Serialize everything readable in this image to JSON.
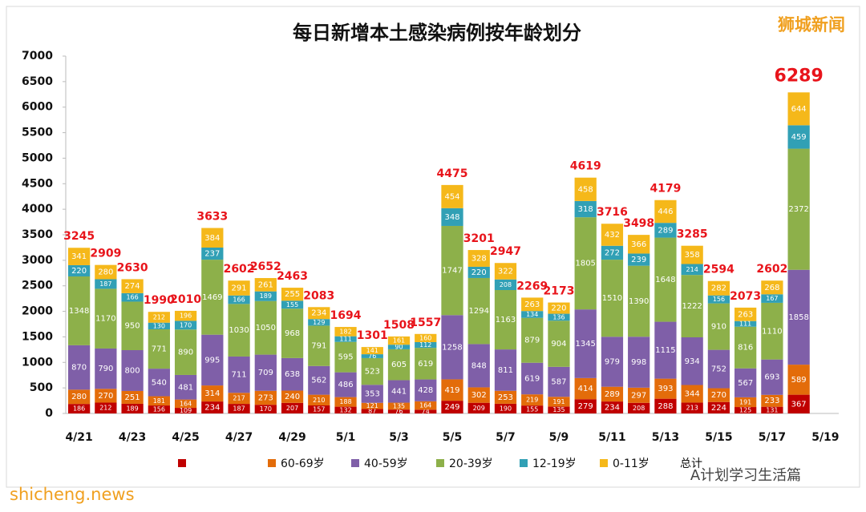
{
  "chart_data": {
    "type": "stacked_bar",
    "title": "每日新增本土感染病例按年龄划分",
    "source_badge": "狮城新闻",
    "watermark": "shicheng.news",
    "credit": "A计划学习生活篇",
    "categories": [
      "4/21",
      null,
      "4/23",
      null,
      "4/25",
      null,
      "4/27",
      null,
      "4/29",
      null,
      "5/1",
      null,
      "5/3",
      null,
      "5/5",
      null,
      "5/7",
      null,
      "5/9",
      null,
      "5/11",
      null,
      "5/13",
      null,
      "5/15",
      null,
      "5/17",
      null,
      "5/19"
    ],
    "series": [
      {
        "name": null,
        "color": "#c00000",
        "values": [
          186,
          212,
          189,
          156,
          109,
          234,
          187,
          170,
          207,
          157,
          132,
          87,
          76,
          74,
          249,
          209,
          190,
          155,
          135,
          279,
          234,
          208,
          288,
          213,
          224,
          125,
          131,
          367,
          null
        ]
      },
      {
        "name": "60-69岁",
        "color": "#e36c0a",
        "values": [
          280,
          270,
          251,
          181,
          164,
          314,
          217,
          273,
          240,
          210,
          188,
          121,
          135,
          164,
          419,
          302,
          253,
          219,
          191,
          414,
          289,
          297,
          393,
          344,
          270,
          191,
          233,
          589,
          null
        ]
      },
      {
        "name": "40-59岁",
        "color": "#7f5fa8",
        "values": [
          870,
          790,
          800,
          540,
          481,
          995,
          711,
          709,
          638,
          562,
          486,
          353,
          441,
          428,
          1258,
          848,
          811,
          619,
          587,
          1345,
          979,
          998,
          1115,
          934,
          752,
          567,
          693,
          1858,
          null
        ]
      },
      {
        "name": "20-39岁",
        "color": "#8db04a",
        "values": [
          1348,
          1170,
          950,
          771,
          890,
          1469,
          1030,
          1050,
          968,
          791,
          595,
          523,
          605,
          619,
          1747,
          1294,
          1163,
          879,
          904,
          1805,
          1510,
          1390,
          1648,
          1222,
          910,
          816,
          1110,
          2372,
          null
        ]
      },
      {
        "name": "12-19岁",
        "color": "#31a0b5",
        "values": [
          220,
          187,
          166,
          130,
          170,
          237,
          166,
          189,
          155,
          129,
          111,
          76,
          90,
          112,
          348,
          220,
          208,
          134,
          136,
          318,
          272,
          239,
          289,
          214,
          156,
          111,
          167,
          459,
          null
        ]
      },
      {
        "name": "0-11岁",
        "color": "#f5b81a",
        "values": [
          341,
          280,
          274,
          212,
          196,
          384,
          291,
          261,
          255,
          234,
          182,
          141,
          161,
          160,
          454,
          328,
          322,
          263,
          220,
          458,
          432,
          366,
          446,
          358,
          282,
          263,
          268,
          644,
          null
        ]
      }
    ],
    "totals": {
      "name": "总计",
      "color": "#e8141b",
      "values": [
        3245,
        2909,
        2630,
        1990,
        2010,
        3633,
        2602,
        2652,
        2463,
        2083,
        1694,
        1301,
        1508,
        1557,
        4475,
        3201,
        2947,
        2269,
        2173,
        4619,
        3716,
        3498,
        4179,
        3285,
        2594,
        2073,
        2602,
        6289,
        null
      ]
    },
    "ylim": [
      0,
      7000
    ],
    "yticks": [
      0,
      500,
      1000,
      1500,
      2000,
      2500,
      3000,
      3500,
      4000,
      4500,
      5000,
      5500,
      6000,
      6500,
      7000
    ],
    "grid": false
  }
}
